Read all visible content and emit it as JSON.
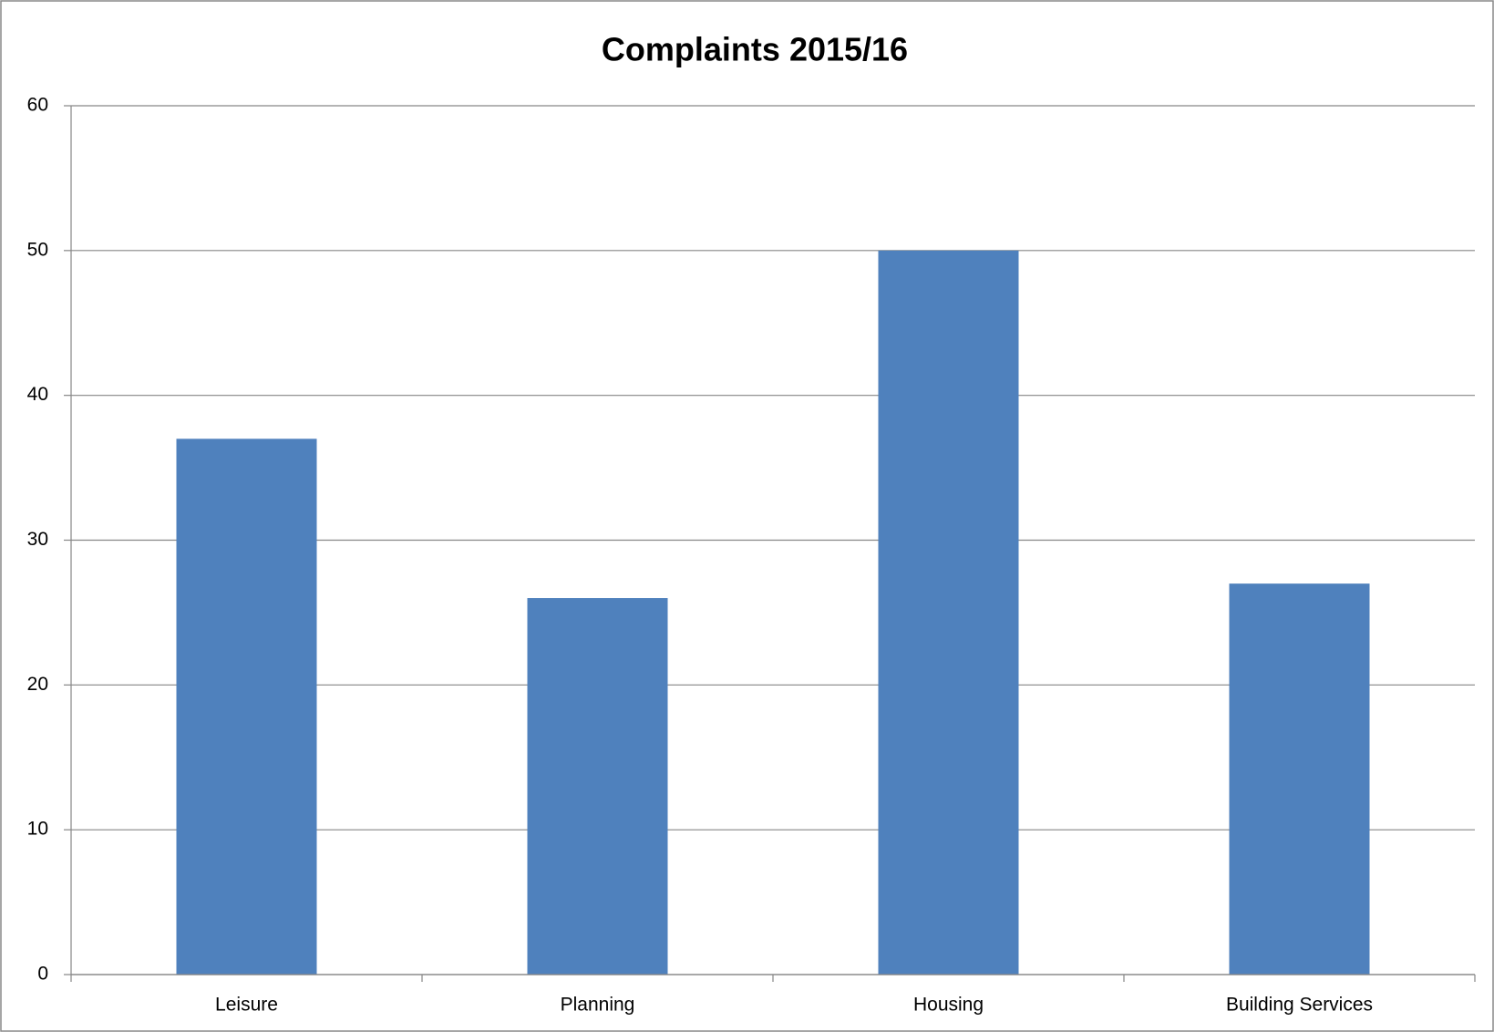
{
  "chart_data": {
    "type": "bar",
    "title": "Complaints 2015/16",
    "categories": [
      "Leisure",
      "Planning",
      "Housing",
      "Building Services"
    ],
    "values": [
      37,
      26,
      50,
      27
    ],
    "color": "#4f81bd",
    "ylim": [
      0,
      60
    ],
    "yticks": [
      0,
      10,
      20,
      30,
      40,
      50,
      60
    ],
    "grid": true
  }
}
